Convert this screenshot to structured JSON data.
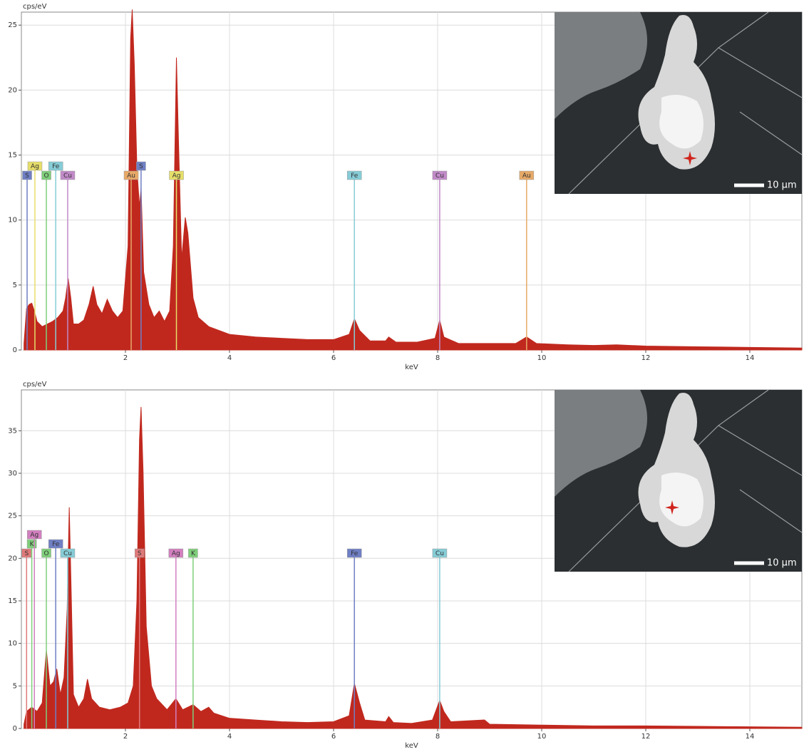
{
  "chart_data": [
    {
      "type": "area",
      "y_label": "cps/eV",
      "x_label": "keV",
      "color": "#c0281e",
      "inset_label": "10 µm",
      "xlim": [
        0,
        15
      ],
      "xticks": [
        2,
        4,
        6,
        8,
        10,
        12,
        14
      ],
      "ylim": [
        0,
        26
      ],
      "yticks": [
        0,
        5,
        10,
        15,
        20,
        25
      ],
      "grid": true,
      "x": [
        0.05,
        0.1,
        0.15,
        0.2,
        0.25,
        0.3,
        0.4,
        0.5,
        0.6,
        0.7,
        0.8,
        0.85,
        0.9,
        0.95,
        1.0,
        1.1,
        1.2,
        1.3,
        1.38,
        1.45,
        1.55,
        1.65,
        1.75,
        1.85,
        1.95,
        2.05,
        2.1,
        2.13,
        2.17,
        2.22,
        2.27,
        2.3,
        2.35,
        2.45,
        2.55,
        2.65,
        2.75,
        2.85,
        2.92,
        2.98,
        3.02,
        3.08,
        3.15,
        3.2,
        3.3,
        3.4,
        3.6,
        4.0,
        4.5,
        5.0,
        5.5,
        6.0,
        6.3,
        6.4,
        6.5,
        6.7,
        7.0,
        7.06,
        7.2,
        7.6,
        7.95,
        8.04,
        8.12,
        8.4,
        8.9,
        9.5,
        9.71,
        9.9,
        10.5,
        11,
        11.44,
        12,
        13,
        14,
        15
      ],
      "values": [
        0.5,
        3.2,
        3.5,
        3.6,
        3.0,
        2.2,
        1.8,
        2.0,
        2.2,
        2.5,
        3.0,
        4.0,
        5.5,
        4.0,
        2.0,
        2.0,
        2.3,
        3.5,
        4.9,
        3.5,
        2.8,
        3.9,
        3.0,
        2.5,
        3.0,
        8,
        24,
        26.2,
        22,
        14,
        11,
        12.5,
        6,
        3.5,
        2.5,
        3.0,
        2.2,
        3,
        8,
        22.5,
        16,
        7,
        10.2,
        9,
        4,
        2.5,
        1.8,
        1.2,
        1.0,
        0.9,
        0.8,
        0.8,
        1.2,
        2.4,
        1.5,
        0.7,
        0.7,
        1.0,
        0.6,
        0.6,
        0.9,
        2.3,
        1.0,
        0.5,
        0.5,
        0.5,
        1.0,
        0.5,
        0.4,
        0.35,
        0.4,
        0.3,
        0.25,
        0.2,
        0.15
      ],
      "markers": [
        {
          "label": "S",
          "x": 0.11,
          "color": "#6f7fc4"
        },
        {
          "label": "Ag",
          "x": 0.26,
          "color": "#e6de6a"
        },
        {
          "label": "O",
          "x": 0.48,
          "color": "#7fcf7a"
        },
        {
          "label": "Fe",
          "x": 0.66,
          "color": "#86ccd6"
        },
        {
          "label": "Cu",
          "x": 0.89,
          "color": "#c18ac8"
        },
        {
          "label": "Au",
          "x": 2.11,
          "color": "#e7a968"
        },
        {
          "label": "S",
          "x": 2.3,
          "color": "#6f7fc4"
        },
        {
          "label": "Ag",
          "x": 2.98,
          "color": "#e6de6a"
        },
        {
          "label": "Fe",
          "x": 6.4,
          "color": "#86ccd6"
        },
        {
          "label": "Cu",
          "x": 8.04,
          "color": "#c18ac8"
        },
        {
          "label": "Au",
          "x": 9.71,
          "color": "#e7a968"
        }
      ]
    },
    {
      "type": "area",
      "y_label": "cps/eV",
      "x_label": "keV",
      "color": "#c0281e",
      "inset_label": "10 µm",
      "xlim": [
        0,
        15
      ],
      "xticks": [
        2,
        4,
        6,
        8,
        10,
        12,
        14
      ],
      "ylim": [
        0,
        39.8
      ],
      "yticks": [
        0,
        5,
        10,
        15,
        20,
        25,
        30,
        35
      ],
      "grid": true,
      "x": [
        0.05,
        0.1,
        0.2,
        0.3,
        0.4,
        0.48,
        0.55,
        0.62,
        0.68,
        0.75,
        0.82,
        0.88,
        0.92,
        0.95,
        1.0,
        1.1,
        1.2,
        1.27,
        1.35,
        1.5,
        1.7,
        1.9,
        2.05,
        2.15,
        2.22,
        2.27,
        2.3,
        2.34,
        2.4,
        2.5,
        2.6,
        2.8,
        2.97,
        3.1,
        3.3,
        3.45,
        3.6,
        3.7,
        4.0,
        4.5,
        5,
        5.5,
        6.0,
        6.3,
        6.4,
        6.5,
        6.6,
        7.0,
        7.06,
        7.15,
        7.5,
        7.9,
        8.04,
        8.12,
        8.25,
        8.9,
        9.0,
        10,
        11,
        12,
        13,
        14,
        15
      ],
      "values": [
        0.5,
        2,
        2.5,
        2,
        3,
        9.2,
        5,
        5.5,
        7,
        4,
        6,
        14,
        26,
        18,
        4,
        2.5,
        3.5,
        5.8,
        3.5,
        2.5,
        2.2,
        2.5,
        3,
        5,
        15,
        34,
        37.8,
        30,
        12,
        5,
        3.5,
        2.2,
        3.5,
        2.2,
        2.8,
        2,
        2.5,
        1.8,
        1.2,
        1,
        0.8,
        0.7,
        0.8,
        1.5,
        5.3,
        3,
        1,
        0.8,
        1.4,
        0.7,
        0.6,
        1,
        3.3,
        2,
        0.8,
        1,
        0.5,
        0.4,
        0.3,
        0.3,
        0.25,
        0.2,
        0.15
      ],
      "markers": [
        {
          "label": "S",
          "x": 0.1,
          "color": "#e07a7a"
        },
        {
          "label": "K",
          "x": 0.2,
          "color": "#7fcf7a"
        },
        {
          "label": "Ag",
          "x": 0.25,
          "color": "#d27fbf"
        },
        {
          "label": "O",
          "x": 0.48,
          "color": "#7fcf7a"
        },
        {
          "label": "Fe",
          "x": 0.66,
          "color": "#6f7fc4"
        },
        {
          "label": "Cu",
          "x": 0.89,
          "color": "#86ccd6"
        },
        {
          "label": "S",
          "x": 2.27,
          "color": "#e07a7a"
        },
        {
          "label": "Ag",
          "x": 2.97,
          "color": "#d27fbf"
        },
        {
          "label": "K",
          "x": 3.3,
          "color": "#7fcf7a"
        },
        {
          "label": "Fe",
          "x": 6.4,
          "color": "#6f7fc4"
        },
        {
          "label": "Cu",
          "x": 8.04,
          "color": "#86ccd6"
        }
      ]
    }
  ]
}
